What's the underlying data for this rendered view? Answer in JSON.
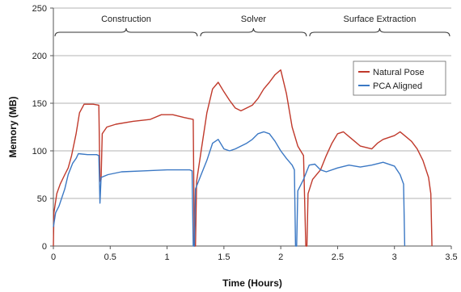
{
  "chart_data": {
    "type": "line",
    "xlabel": "Time (Hours)",
    "ylabel": "Memory (MB)",
    "xlim": [
      0,
      3.5
    ],
    "ylim": [
      0,
      250
    ],
    "xticks": [
      0,
      0.5,
      1,
      1.5,
      2,
      2.5,
      3,
      3.5
    ],
    "xtick_labels": [
      "0",
      "0.5",
      "1",
      "1.5",
      "2",
      "2.5",
      "3",
      "3.5"
    ],
    "yticks": [
      0,
      50,
      100,
      150,
      200,
      250
    ],
    "ytick_labels": [
      "0",
      "50",
      "100",
      "150",
      "200",
      "250"
    ],
    "grid": "horizontal",
    "legend_position": "top-right",
    "phases": [
      {
        "label": "Construction",
        "start": 0,
        "end": 1.28
      },
      {
        "label": "Solver",
        "start": 1.28,
        "end": 2.24
      },
      {
        "label": "Surface Extraction",
        "start": 2.24,
        "end": 3.5
      }
    ],
    "series": [
      {
        "name": "Natural Pose",
        "color": "#c0392b",
        "points": [
          [
            0.0,
            0
          ],
          [
            0.005,
            35
          ],
          [
            0.03,
            55
          ],
          [
            0.06,
            65
          ],
          [
            0.1,
            75
          ],
          [
            0.13,
            82
          ],
          [
            0.16,
            95
          ],
          [
            0.2,
            118
          ],
          [
            0.23,
            140
          ],
          [
            0.27,
            149
          ],
          [
            0.35,
            149
          ],
          [
            0.4,
            148
          ],
          [
            0.41,
            68
          ],
          [
            0.42,
            70
          ],
          [
            0.43,
            118
          ],
          [
            0.47,
            125
          ],
          [
            0.55,
            128
          ],
          [
            0.7,
            131
          ],
          [
            0.85,
            133
          ],
          [
            0.95,
            138
          ],
          [
            1.05,
            138
          ],
          [
            1.15,
            135
          ],
          [
            1.23,
            133
          ],
          [
            1.24,
            0
          ],
          [
            1.25,
            0
          ],
          [
            1.26,
            68
          ],
          [
            1.3,
            100
          ],
          [
            1.35,
            140
          ],
          [
            1.4,
            165
          ],
          [
            1.45,
            172
          ],
          [
            1.5,
            162
          ],
          [
            1.55,
            153
          ],
          [
            1.6,
            145
          ],
          [
            1.65,
            142
          ],
          [
            1.7,
            145
          ],
          [
            1.75,
            148
          ],
          [
            1.8,
            155
          ],
          [
            1.85,
            165
          ],
          [
            1.9,
            172
          ],
          [
            1.95,
            180
          ],
          [
            2.0,
            185
          ],
          [
            2.05,
            160
          ],
          [
            2.1,
            125
          ],
          [
            2.15,
            105
          ],
          [
            2.2,
            95
          ],
          [
            2.22,
            0
          ],
          [
            2.23,
            0
          ],
          [
            2.24,
            55
          ],
          [
            2.28,
            70
          ],
          [
            2.35,
            80
          ],
          [
            2.4,
            95
          ],
          [
            2.45,
            108
          ],
          [
            2.5,
            118
          ],
          [
            2.55,
            120
          ],
          [
            2.6,
            115
          ],
          [
            2.65,
            110
          ],
          [
            2.7,
            105
          ],
          [
            2.8,
            102
          ],
          [
            2.85,
            108
          ],
          [
            2.9,
            112
          ],
          [
            3.0,
            116
          ],
          [
            3.05,
            120
          ],
          [
            3.1,
            115
          ],
          [
            3.15,
            110
          ],
          [
            3.2,
            102
          ],
          [
            3.25,
            90
          ],
          [
            3.3,
            72
          ],
          [
            3.32,
            55
          ],
          [
            3.33,
            0
          ]
        ]
      },
      {
        "name": "PCA Aligned",
        "color": "#3b78c4",
        "points": [
          [
            0.0,
            20
          ],
          [
            0.02,
            35
          ],
          [
            0.05,
            42
          ],
          [
            0.1,
            60
          ],
          [
            0.13,
            75
          ],
          [
            0.17,
            87
          ],
          [
            0.2,
            92
          ],
          [
            0.22,
            97
          ],
          [
            0.3,
            96
          ],
          [
            0.38,
            96
          ],
          [
            0.4,
            95
          ],
          [
            0.41,
            45
          ],
          [
            0.42,
            72
          ],
          [
            0.48,
            75
          ],
          [
            0.6,
            78
          ],
          [
            0.8,
            79
          ],
          [
            1.0,
            80
          ],
          [
            1.2,
            80
          ],
          [
            1.22,
            79
          ],
          [
            1.23,
            0
          ],
          [
            1.24,
            0
          ],
          [
            1.25,
            60
          ],
          [
            1.3,
            75
          ],
          [
            1.35,
            90
          ],
          [
            1.4,
            108
          ],
          [
            1.45,
            112
          ],
          [
            1.5,
            102
          ],
          [
            1.55,
            100
          ],
          [
            1.6,
            102
          ],
          [
            1.65,
            105
          ],
          [
            1.7,
            108
          ],
          [
            1.75,
            112
          ],
          [
            1.8,
            118
          ],
          [
            1.85,
            120
          ],
          [
            1.9,
            118
          ],
          [
            1.95,
            110
          ],
          [
            2.0,
            100
          ],
          [
            2.05,
            92
          ],
          [
            2.1,
            85
          ],
          [
            2.12,
            80
          ],
          [
            2.13,
            0
          ],
          [
            2.14,
            0
          ],
          [
            2.15,
            58
          ],
          [
            2.2,
            70
          ],
          [
            2.25,
            85
          ],
          [
            2.3,
            86
          ],
          [
            2.35,
            80
          ],
          [
            2.4,
            78
          ],
          [
            2.5,
            82
          ],
          [
            2.6,
            85
          ],
          [
            2.7,
            83
          ],
          [
            2.8,
            85
          ],
          [
            2.9,
            88
          ],
          [
            3.0,
            84
          ],
          [
            3.05,
            75
          ],
          [
            3.08,
            65
          ],
          [
            3.09,
            0
          ]
        ]
      }
    ]
  }
}
